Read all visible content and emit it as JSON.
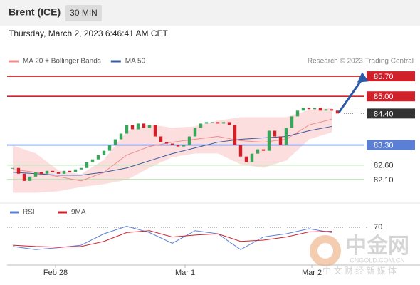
{
  "header": {
    "title": "Brent (ICE)",
    "interval": "30 MIN",
    "datetime": "Thursday, March 2, 2023 6:46:41 AM CET"
  },
  "watermark": {
    "name": "中金网",
    "site": "CNGOLD.COM.CN",
    "slogan": "中 文 财 经 新 媒 体"
  },
  "chart_data": [
    {
      "type": "candlestick",
      "legend": [
        {
          "name": "MA 20 + Bollinger Bands",
          "color": "#f08c8c"
        },
        {
          "name": "MA 50",
          "color": "#3a5a99"
        }
      ],
      "credit": "Research © 2023 Trading Central",
      "close": [
        82.5,
        82.3,
        82.05,
        82.2,
        82.35,
        82.3,
        82.4,
        82.35,
        82.3,
        82.4,
        82.35,
        82.45,
        82.5,
        82.7,
        82.8,
        82.95,
        83.1,
        83.3,
        83.5,
        83.7,
        84.0,
        83.85,
        84.05,
        83.9,
        84.0,
        83.6,
        83.4,
        83.35,
        83.3,
        83.25,
        83.3,
        83.6,
        83.9,
        84.05,
        84.1,
        84.1,
        84.05,
        84.1,
        84.0,
        83.3,
        82.9,
        82.7,
        83.0,
        83.15,
        83.1,
        83.8,
        83.6,
        83.3,
        83.9,
        84.3,
        84.5,
        84.6,
        84.55,
        84.6,
        84.5,
        84.55,
        84.5,
        84.4
      ],
      "up_color": "#3ba55c",
      "down_color": "#d0202a",
      "ma_x": [
        0,
        4,
        8,
        12,
        16,
        20,
        24,
        28,
        32,
        36,
        40,
        44,
        48,
        52,
        56
      ],
      "bb_upper": [
        83.27,
        83.0,
        82.4,
        82.27,
        82.77,
        83.76,
        84.01,
        83.89,
        83.94,
        84.14,
        84.26,
        84.26,
        84.26,
        84.51,
        84.58
      ],
      "bb_lower": [
        81.65,
        81.65,
        81.7,
        81.85,
        81.95,
        82.1,
        82.52,
        82.89,
        83.02,
        83.02,
        82.64,
        82.52,
        82.77,
        83.51,
        83.76
      ],
      "ma20": [
        82.45,
        82.35,
        82.2,
        82.05,
        82.35,
        82.95,
        83.25,
        83.4,
        83.5,
        83.6,
        83.45,
        83.4,
        83.5,
        84.0,
        84.2
      ],
      "ma50": [
        82.35,
        82.3,
        82.25,
        82.25,
        82.35,
        82.5,
        82.75,
        83.0,
        83.2,
        83.4,
        83.5,
        83.55,
        83.6,
        83.8,
        83.95
      ],
      "band_color": "#fcdede",
      "levels": [
        {
          "value": 85.7,
          "label": "85.70",
          "color": "#d0202a",
          "box": true
        },
        {
          "value": 85.0,
          "label": "85.00",
          "color": "#d0202a",
          "box": true
        },
        {
          "value": 83.3,
          "label": "83.30",
          "color": "#5b7fd6",
          "box": true
        },
        {
          "value": 82.6,
          "label": "82.60",
          "color": "#b5dcae",
          "box": false
        },
        {
          "value": 82.1,
          "label": "82.10",
          "color": "#b5dcae",
          "box": false
        }
      ],
      "last": {
        "value": 84.4,
        "label": "84.40",
        "color": "#333333"
      },
      "ylim": [
        81.4,
        86.0
      ],
      "xlim": [
        -1,
        60
      ],
      "xticks": [
        {
          "value": 7.5,
          "label": "Feb 28"
        },
        {
          "value": 30.25,
          "label": "Mar 1"
        },
        {
          "value": 52.5,
          "label": "Mar 2"
        }
      ]
    },
    {
      "type": "rsi",
      "series": [
        {
          "name": "RSI",
          "color": "#5b7fd6",
          "values": [
            40,
            35,
            38,
            42,
            60,
            72,
            62,
            45,
            65,
            60,
            35,
            55,
            60,
            68,
            62
          ]
        },
        {
          "name": "9MA",
          "color": "#d0202a",
          "values": [
            42,
            40,
            39,
            40,
            48,
            62,
            65,
            55,
            58,
            60,
            48,
            50,
            55,
            63,
            64
          ]
        }
      ],
      "x": [
        0,
        4,
        8,
        12,
        16,
        20,
        24,
        28,
        32,
        36,
        40,
        44,
        48,
        52,
        56
      ],
      "ylim": [
        15,
        85
      ],
      "yticks": [
        70
      ]
    }
  ]
}
